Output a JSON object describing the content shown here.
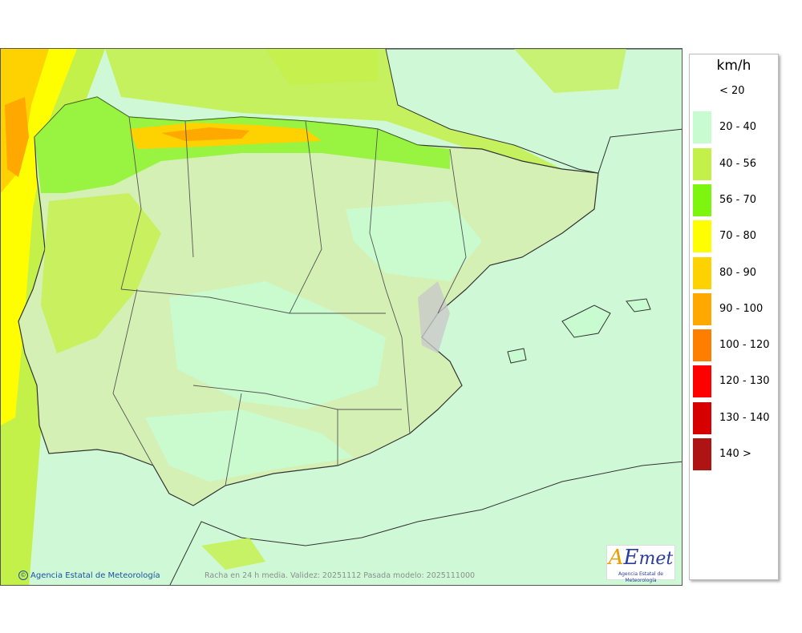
{
  "map": {
    "credit": "Agencia Estatal de Meteorología",
    "caption": "Racha en 24 h media. Validez: 20251112 Pasada modelo: 2025111000",
    "logo_text": "AEmet",
    "logo_subtitle": "Agencia Estatal de Meteorología"
  },
  "legend": {
    "unit": "km/h",
    "items": [
      {
        "label": "< 20",
        "color": "#ffffff"
      },
      {
        "label": "20 - 40",
        "color": "#c8fcd0"
      },
      {
        "label": "40 - 56",
        "color": "#c4f04a"
      },
      {
        "label": "56 - 70",
        "color": "#7ef50e"
      },
      {
        "label": "70 - 80",
        "color": "#fefe00"
      },
      {
        "label": "80 - 90",
        "color": "#fed200"
      },
      {
        "label": "90 - 100",
        "color": "#fea800"
      },
      {
        "label": "100 - 120",
        "color": "#fe7e00"
      },
      {
        "label": "120 - 130",
        "color": "#fe0000"
      },
      {
        "label": "130 - 140",
        "color": "#d60000"
      },
      {
        "label": "140 >",
        "color": "#ae1414"
      }
    ]
  }
}
